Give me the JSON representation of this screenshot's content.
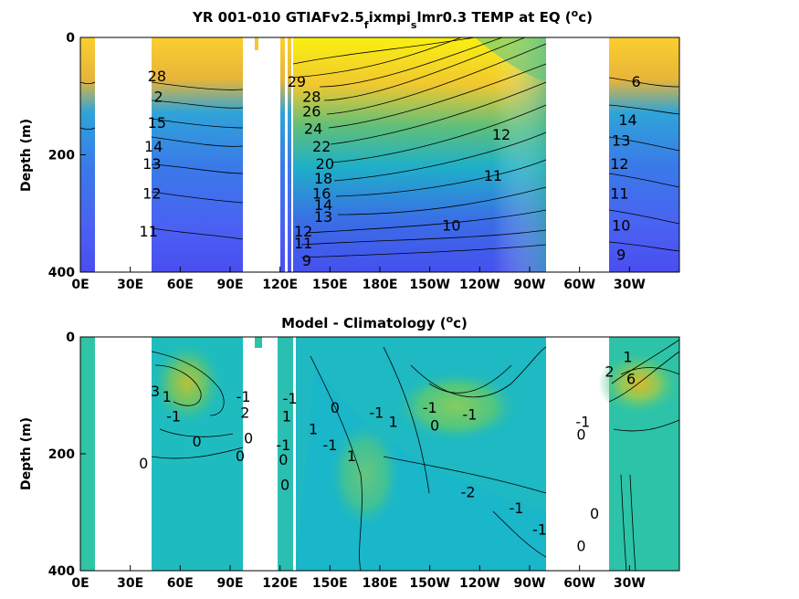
{
  "chart_data": [
    {
      "type": "heatmap",
      "title": "YR 001-010 GTIAFv2.5_fixmpi_slmr0.3 TEMP at EQ (°c)",
      "title_parts": {
        "main": "YR 001-010 GTIAFv2.5",
        "sub1": "f",
        "mid": "ixmpi",
        "sub2": "s",
        "tail": "lmr0.3 TEMP at EQ (",
        "sup": "o",
        "end": "c)"
      },
      "ylabel": "Depth (m)",
      "xlim": [
        0,
        360
      ],
      "ylim": [
        400,
        0
      ],
      "xticks": [
        "0E",
        "30E",
        "60E",
        "90E",
        "120E",
        "150E",
        "180E",
        "150W",
        "120W",
        "90W",
        "60W",
        "30W"
      ],
      "yticks": [
        "0",
        "200",
        "400"
      ],
      "colormap": [
        "#3e26a8",
        "#4a5ef7",
        "#2d8ff0",
        "#1cb3d3",
        "#31c89a",
        "#8bcc5a",
        "#d8ba30",
        "#fcce2e",
        "#f9fb0e"
      ],
      "contour_levels": [
        9,
        10,
        11,
        12,
        13,
        14,
        15,
        16,
        18,
        20,
        22,
        24,
        26,
        27,
        28,
        29
      ],
      "contour_labels": [
        {
          "lon": 46,
          "depth": 65,
          "text": "28"
        },
        {
          "lon": 47,
          "depth": 100,
          "text": "2"
        },
        {
          "lon": 46,
          "depth": 145,
          "text": "15"
        },
        {
          "lon": 44,
          "depth": 185,
          "text": "14"
        },
        {
          "lon": 43,
          "depth": 215,
          "text": "13"
        },
        {
          "lon": 43,
          "depth": 265,
          "text": "12"
        },
        {
          "lon": 41,
          "depth": 330,
          "text": "11"
        },
        {
          "lon": 130,
          "depth": 75,
          "text": "29"
        },
        {
          "lon": 139,
          "depth": 100,
          "text": "28"
        },
        {
          "lon": 139,
          "depth": 125,
          "text": "26"
        },
        {
          "lon": 140,
          "depth": 155,
          "text": "24"
        },
        {
          "lon": 145,
          "depth": 185,
          "text": "22"
        },
        {
          "lon": 147,
          "depth": 215,
          "text": "20"
        },
        {
          "lon": 146,
          "depth": 240,
          "text": "18"
        },
        {
          "lon": 145,
          "depth": 265,
          "text": "16"
        },
        {
          "lon": 146,
          "depth": 285,
          "text": "14"
        },
        {
          "lon": 146,
          "depth": 305,
          "text": "13"
        },
        {
          "lon": 134,
          "depth": 330,
          "text": "12"
        },
        {
          "lon": 134,
          "depth": 350,
          "text": "11"
        },
        {
          "lon": 136,
          "depth": 380,
          "text": "9"
        },
        {
          "lon": 253,
          "depth": 165,
          "text": "12"
        },
        {
          "lon": 248,
          "depth": 235,
          "text": "11"
        },
        {
          "lon": 223,
          "depth": 320,
          "text": "10"
        },
        {
          "lon": 334,
          "depth": 75,
          "text": "6"
        },
        {
          "lon": 329,
          "depth": 140,
          "text": "14"
        },
        {
          "lon": 325,
          "depth": 175,
          "text": "13"
        },
        {
          "lon": 324,
          "depth": 215,
          "text": "12"
        },
        {
          "lon": 324,
          "depth": 265,
          "text": "11"
        },
        {
          "lon": 325,
          "depth": 320,
          "text": "10"
        },
        {
          "lon": 325,
          "depth": 370,
          "text": "9"
        }
      ]
    },
    {
      "type": "heatmap",
      "title": "Model - Climatology (°c)",
      "title_parts": {
        "main": "Model - Climatology (",
        "sup": "o",
        "end": "c)"
      },
      "ylabel": "Depth (m)",
      "xlim": [
        0,
        360
      ],
      "ylim": [
        400,
        0
      ],
      "xticks": [
        "0E",
        "30E",
        "60E",
        "90E",
        "120E",
        "150E",
        "180E",
        "150W",
        "120W",
        "90W",
        "60W",
        "30W"
      ],
      "yticks": [
        "0",
        "200",
        "400"
      ],
      "colormap": [
        "#3e26a8",
        "#2d8ff0",
        "#1cb3d3",
        "#31c89a",
        "#8bcc5a",
        "#d8ba30",
        "#f9fb0e"
      ],
      "contour_levels": [
        -2,
        -1,
        0,
        1,
        2,
        3,
        6
      ],
      "contour_labels": [
        {
          "lon": 45,
          "depth": 150,
          "text": "3"
        },
        {
          "lon": 52,
          "depth": 165,
          "text": "1"
        },
        {
          "lon": 56,
          "depth": 220,
          "text": "-1"
        },
        {
          "lon": 70,
          "depth": 290,
          "text": "0"
        },
        {
          "lon": 38,
          "depth": 350,
          "text": "0"
        },
        {
          "lon": 98,
          "depth": 165,
          "text": "-1"
        },
        {
          "lon": 99,
          "depth": 210,
          "text": "2"
        },
        {
          "lon": 101,
          "depth": 280,
          "text": "0"
        },
        {
          "lon": 96,
          "depth": 330,
          "text": "0"
        },
        {
          "lon": 126,
          "depth": 170,
          "text": "-1"
        },
        {
          "lon": 124,
          "depth": 220,
          "text": "1"
        },
        {
          "lon": 122,
          "depth": 300,
          "text": "-1"
        },
        {
          "lon": 122,
          "depth": 340,
          "text": "0"
        },
        {
          "lon": 123,
          "depth": 410,
          "text": "0"
        },
        {
          "lon": 140,
          "depth": 255,
          "text": "1"
        },
        {
          "lon": 150,
          "depth": 300,
          "text": "-1"
        },
        {
          "lon": 153,
          "depth": 195,
          "text": "0"
        },
        {
          "lon": 178,
          "depth": 210,
          "text": "-1"
        },
        {
          "lon": 163,
          "depth": 330,
          "text": "1"
        },
        {
          "lon": 188,
          "depth": 235,
          "text": "1"
        },
        {
          "lon": 210,
          "depth": 195,
          "text": "-1"
        },
        {
          "lon": 213,
          "depth": 245,
          "text": "0"
        },
        {
          "lon": 234,
          "depth": 215,
          "text": "-1"
        },
        {
          "lon": 233,
          "depth": 430,
          "text": "-2"
        },
        {
          "lon": 262,
          "depth": 475,
          "text": "-1"
        },
        {
          "lon": 276,
          "depth": 535,
          "text": "-1"
        },
        {
          "lon": 329,
          "depth": 55,
          "text": "1"
        },
        {
          "lon": 318,
          "depth": 95,
          "text": "2"
        },
        {
          "lon": 331,
          "depth": 115,
          "text": "6"
        },
        {
          "lon": 302,
          "depth": 235,
          "text": "-1"
        },
        {
          "lon": 301,
          "depth": 270,
          "text": "0"
        },
        {
          "lon": 309,
          "depth": 490,
          "text": "0"
        },
        {
          "lon": 301,
          "depth": 580,
          "text": "0"
        }
      ]
    }
  ]
}
